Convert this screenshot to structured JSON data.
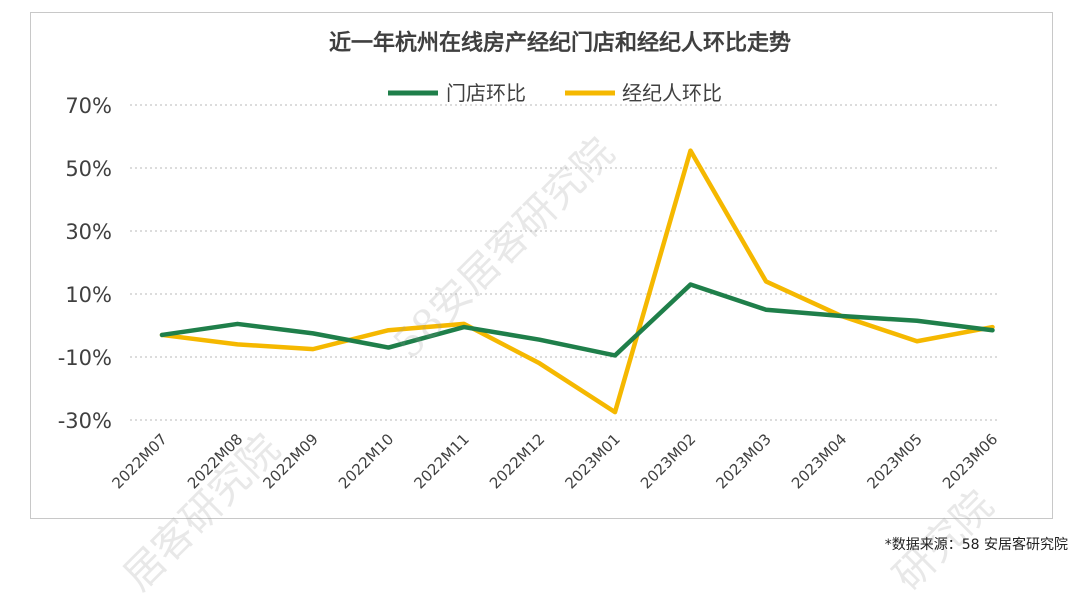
{
  "chart_data": {
    "type": "line",
    "title": "近一年杭州在线房产经纪门店和经纪人环比走势",
    "categories": [
      "2022M07",
      "2022M08",
      "2022M09",
      "2022M10",
      "2022M11",
      "2022M12",
      "2023M01",
      "2023M02",
      "2023M03",
      "2023M04",
      "2023M05",
      "2023M06"
    ],
    "series": [
      {
        "name": "门店环比",
        "color": "#1f7f4a",
        "values": [
          -3,
          0.5,
          -2.5,
          -7,
          -0.5,
          -4.5,
          -9.5,
          13,
          5,
          3,
          1.5,
          -1.5
        ]
      },
      {
        "name": "经纪人环比",
        "color": "#f5b800",
        "values": [
          -3,
          -6,
          -7.5,
          -1.5,
          0.5,
          -12,
          -27.5,
          55.5,
          14,
          3,
          -5,
          -0.5
        ]
      }
    ],
    "y_ticks": [
      "70%",
      "50%",
      "30%",
      "10%",
      "-10%",
      "-30%"
    ],
    "y_tick_values": [
      70,
      50,
      30,
      10,
      -10,
      -30
    ],
    "ylim": [
      -30,
      70
    ],
    "grid": true,
    "legend_position": "top-center"
  },
  "watermark": {
    "text_a": "58安居客研究院",
    "text_b": "居客研究院",
    "text_c": "研究院"
  },
  "source": "*数据来源：58 安居客研究院"
}
